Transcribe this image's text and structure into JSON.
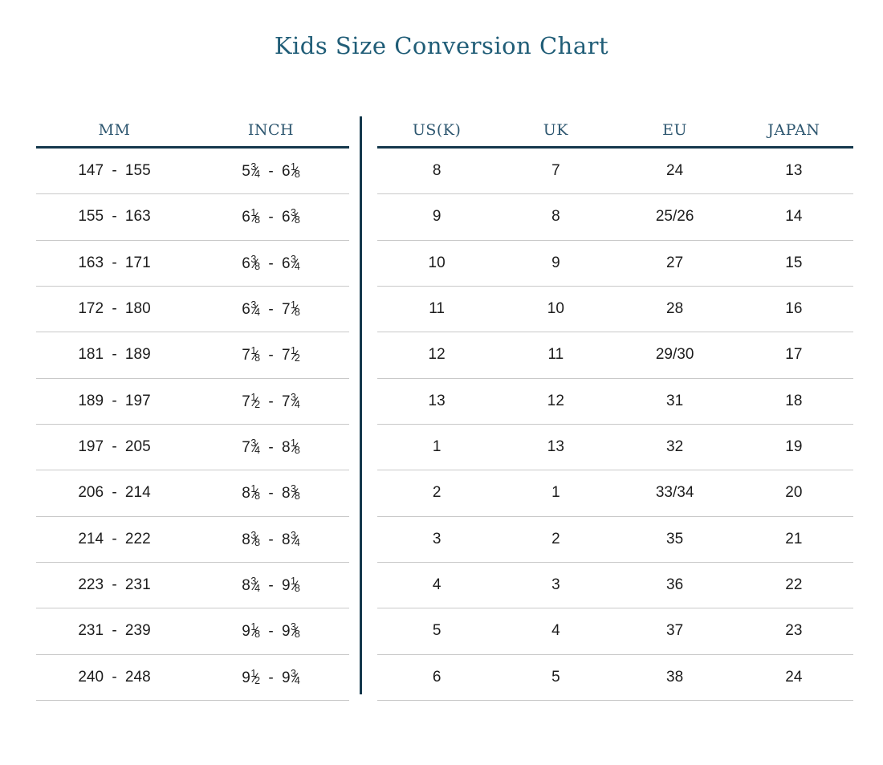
{
  "page": {
    "title": "Kids Size Conversion Chart"
  },
  "colors": {
    "accent_line": "#14384c",
    "title_text": "#205d77",
    "header_text": "#2e5770",
    "row_divider": "#c9c9c9",
    "cell_text": "#1c1c1c"
  },
  "size_table": {
    "left": {
      "headers": [
        "MM",
        "INCH"
      ],
      "rows": [
        {
          "mm": "147 - 155",
          "inch": "5 3/4 - 6 1/8"
        },
        {
          "mm": "155 - 163",
          "inch": "6 1/8 - 6 3/8"
        },
        {
          "mm": "163 - 171",
          "inch": "6 3/8 - 6 3/4"
        },
        {
          "mm": "172 - 180",
          "inch": "6 3/4 - 7 1/8"
        },
        {
          "mm": "181 - 189",
          "inch": "7 1/8 - 7 1/2"
        },
        {
          "mm": "189 - 197",
          "inch": "7 1/2 - 7 3/4"
        },
        {
          "mm": "197 - 205",
          "inch": "7 3/4 - 8 1/8"
        },
        {
          "mm": "206 - 214",
          "inch": "8 1/8 - 8 3/8"
        },
        {
          "mm": "214 - 222",
          "inch": "8 3/8 - 8 3/4"
        },
        {
          "mm": "223 - 231",
          "inch": "8 3/4 - 9 1/8"
        },
        {
          "mm": "231 - 239",
          "inch": "9 1/8 - 9 3/8"
        },
        {
          "mm": "240 - 248",
          "inch": "9 1/2 - 9 3/4"
        }
      ]
    },
    "right": {
      "headers": [
        "US(K)",
        "UK",
        "EU",
        "JAPAN"
      ],
      "rows": [
        {
          "us": "8",
          "uk": "7",
          "eu": "24",
          "japan": "13"
        },
        {
          "us": "9",
          "uk": "8",
          "eu": "25/26",
          "japan": "14"
        },
        {
          "us": "10",
          "uk": "9",
          "eu": "27",
          "japan": "15"
        },
        {
          "us": "11",
          "uk": "10",
          "eu": "28",
          "japan": "16"
        },
        {
          "us": "12",
          "uk": "11",
          "eu": "29/30",
          "japan": "17"
        },
        {
          "us": "13",
          "uk": "12",
          "eu": "31",
          "japan": "18"
        },
        {
          "us": "1",
          "uk": "13",
          "eu": "32",
          "japan": "19"
        },
        {
          "us": "2",
          "uk": "1",
          "eu": "33/34",
          "japan": "20"
        },
        {
          "us": "3",
          "uk": "2",
          "eu": "35",
          "japan": "21"
        },
        {
          "us": "4",
          "uk": "3",
          "eu": "36",
          "japan": "22"
        },
        {
          "us": "5",
          "uk": "4",
          "eu": "37",
          "japan": "23"
        },
        {
          "us": "6",
          "uk": "5",
          "eu": "38",
          "japan": "24"
        }
      ]
    }
  },
  "chart_data": {
    "type": "table",
    "title": "Kids Size Conversion Chart",
    "columns": [
      "MM",
      "INCH",
      "US(K)",
      "UK",
      "EU",
      "JAPAN"
    ],
    "rows": [
      [
        "147 - 155",
        "5 3/4 - 6 1/8",
        "8",
        "7",
        "24",
        "13"
      ],
      [
        "155 - 163",
        "6 1/8 - 6 3/8",
        "9",
        "8",
        "25/26",
        "14"
      ],
      [
        "163 - 171",
        "6 3/8 - 6 3/4",
        "10",
        "9",
        "27",
        "15"
      ],
      [
        "172 - 180",
        "6 3/4 - 7 1/8",
        "11",
        "10",
        "28",
        "16"
      ],
      [
        "181 - 189",
        "7 1/8 - 7 1/2",
        "12",
        "11",
        "29/30",
        "17"
      ],
      [
        "189 - 197",
        "7 1/2 - 7 3/4",
        "13",
        "12",
        "31",
        "18"
      ],
      [
        "197 - 205",
        "7 3/4 - 8 1/8",
        "1",
        "13",
        "32",
        "19"
      ],
      [
        "206 - 214",
        "8 1/8 - 8 3/8",
        "2",
        "1",
        "33/34",
        "20"
      ],
      [
        "214 - 222",
        "8 3/8 - 8 3/4",
        "3",
        "2",
        "35",
        "21"
      ],
      [
        "223 - 231",
        "8 3/4 - 9 1/8",
        "4",
        "3",
        "36",
        "22"
      ],
      [
        "231 - 239",
        "9 1/8 - 9 3/8",
        "5",
        "4",
        "37",
        "23"
      ],
      [
        "240 - 248",
        "9 1/2 - 9 3/4",
        "6",
        "5",
        "38",
        "24"
      ]
    ]
  }
}
